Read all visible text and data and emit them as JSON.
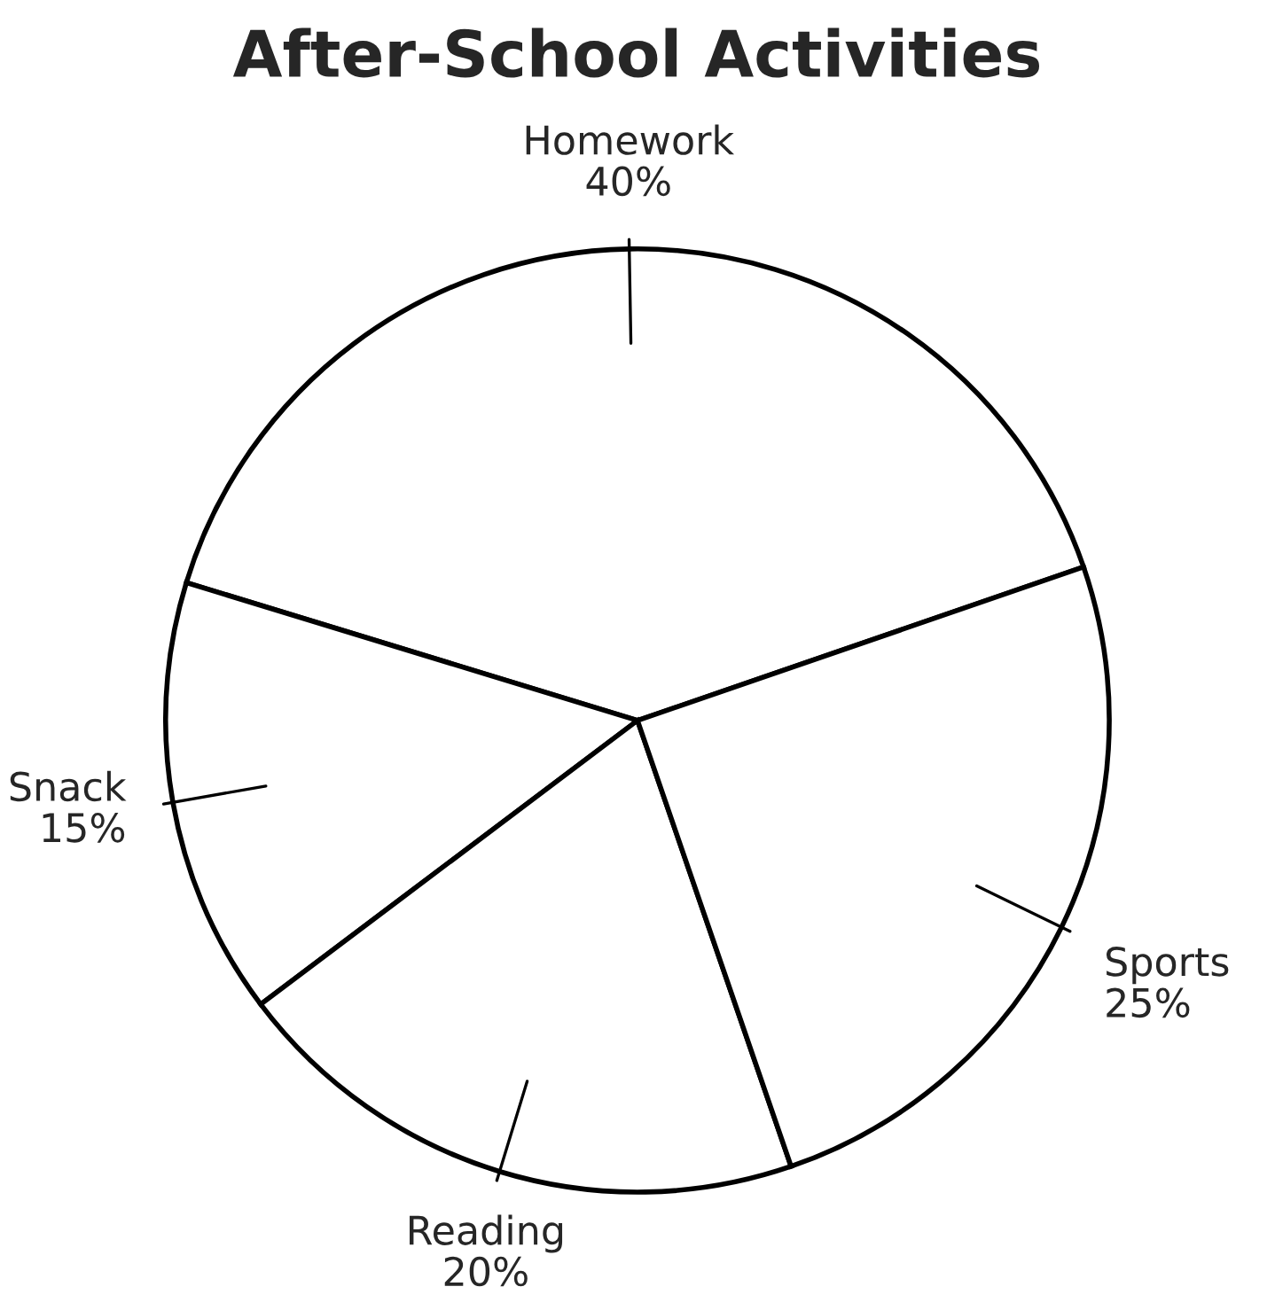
{
  "chart_data": {
    "type": "pie",
    "title": "After-School Activities",
    "categories": [
      "Homework",
      "Snack",
      "Reading",
      "Sports"
    ],
    "values": [
      40,
      15,
      20,
      25
    ],
    "value_labels": [
      "40%",
      "15%",
      "20%",
      "25%"
    ],
    "colors": [
      "#ffffff",
      "#ffffff",
      "#ffffff",
      "#ffffff"
    ]
  }
}
